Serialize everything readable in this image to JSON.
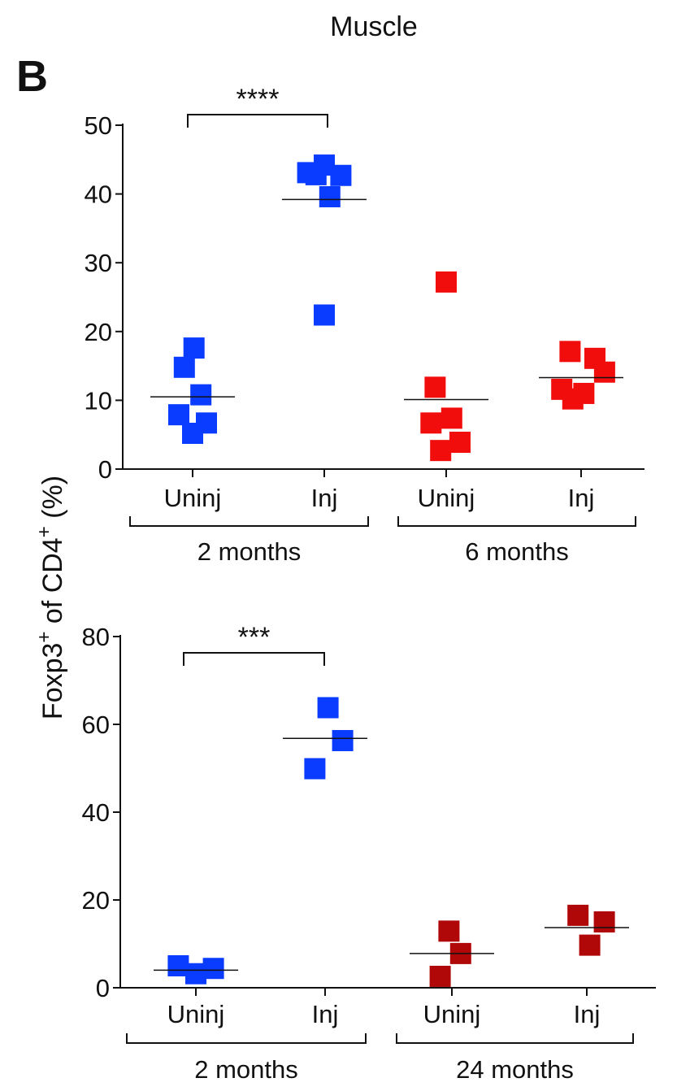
{
  "figure": {
    "title": "Muscle",
    "panel_label": "B",
    "ylabel": "Foxp3",
    "ylabel_sup": "+",
    "ylabel_mid": " of CD4",
    "ylabel_sup2": "+",
    "ylabel_end": " (%)"
  },
  "colors": {
    "young": "#0a3cff",
    "mid": "#f20d0d",
    "old": "#b00808"
  },
  "chart_data": [
    {
      "type": "scatter",
      "ylim": [
        0,
        50
      ],
      "yticks": [
        "0",
        "10",
        "20",
        "30",
        "40",
        "50"
      ],
      "categories": [
        "Uninj",
        "Inj",
        "Uninj",
        "Inj"
      ],
      "groups": [
        "2 months",
        "6 months"
      ],
      "significance": "****",
      "series": [
        {
          "name": "2 months Uninj",
          "color": "young",
          "mean": 10.5,
          "points": [
            [
              -0.5,
              7.9
            ],
            [
              0,
              5.2
            ],
            [
              0.5,
              6.7
            ],
            [
              -0.3,
              14.8
            ],
            [
              0.05,
              17.6
            ],
            [
              0.3,
              10.8
            ]
          ]
        },
        {
          "name": "2 months Inj",
          "color": "young",
          "mean": 39.2,
          "points": [
            [
              -0.6,
              43.1
            ],
            [
              -0.3,
              42.8
            ],
            [
              0.0,
              44.2
            ],
            [
              0.2,
              39.6
            ],
            [
              0.6,
              42.7
            ],
            [
              0.0,
              22.4
            ]
          ]
        },
        {
          "name": "6 months Uninj",
          "color": "mid",
          "mean": 10.1,
          "points": [
            [
              -0.4,
              11.9
            ],
            [
              -0.55,
              6.7
            ],
            [
              0.2,
              7.4
            ],
            [
              0.0,
              27.2
            ],
            [
              -0.2,
              2.7
            ],
            [
              0.5,
              3.9
            ]
          ]
        },
        {
          "name": "6 months Inj",
          "color": "mid",
          "mean": 13.3,
          "points": [
            [
              -0.4,
              17.1
            ],
            [
              0.5,
              16.1
            ],
            [
              -0.7,
              11.6
            ],
            [
              -0.3,
              10.2
            ],
            [
              0.1,
              11.0
            ],
            [
              0.85,
              14.1
            ]
          ]
        }
      ]
    },
    {
      "type": "scatter",
      "ylim": [
        0,
        80
      ],
      "yticks": [
        "0",
        "20",
        "40",
        "60",
        "80"
      ],
      "categories": [
        "Uninj",
        "Inj",
        "Uninj",
        "Inj"
      ],
      "groups": [
        "2 months",
        "24 months"
      ],
      "significance": "***",
      "series": [
        {
          "name": "2 months Uninj",
          "color": "young",
          "mean": 4.0,
          "points": [
            [
              -0.6,
              5.0
            ],
            [
              0.0,
              3.2
            ],
            [
              0.6,
              4.4
            ]
          ]
        },
        {
          "name": "2 months Inj",
          "color": "young",
          "mean": 56.8,
          "points": [
            [
              -0.35,
              49.9
            ],
            [
              0.1,
              63.8
            ],
            [
              0.6,
              56.3
            ]
          ]
        },
        {
          "name": "24 months Uninj",
          "color": "old",
          "mean": 7.8,
          "points": [
            [
              -0.4,
              2.6
            ],
            [
              -0.1,
              12.9
            ],
            [
              0.3,
              7.8
            ]
          ]
        },
        {
          "name": "24 months Inj",
          "color": "old",
          "mean": 13.7,
          "points": [
            [
              -0.3,
              16.5
            ],
            [
              0.1,
              9.7
            ],
            [
              0.6,
              15.0
            ]
          ]
        }
      ]
    }
  ]
}
